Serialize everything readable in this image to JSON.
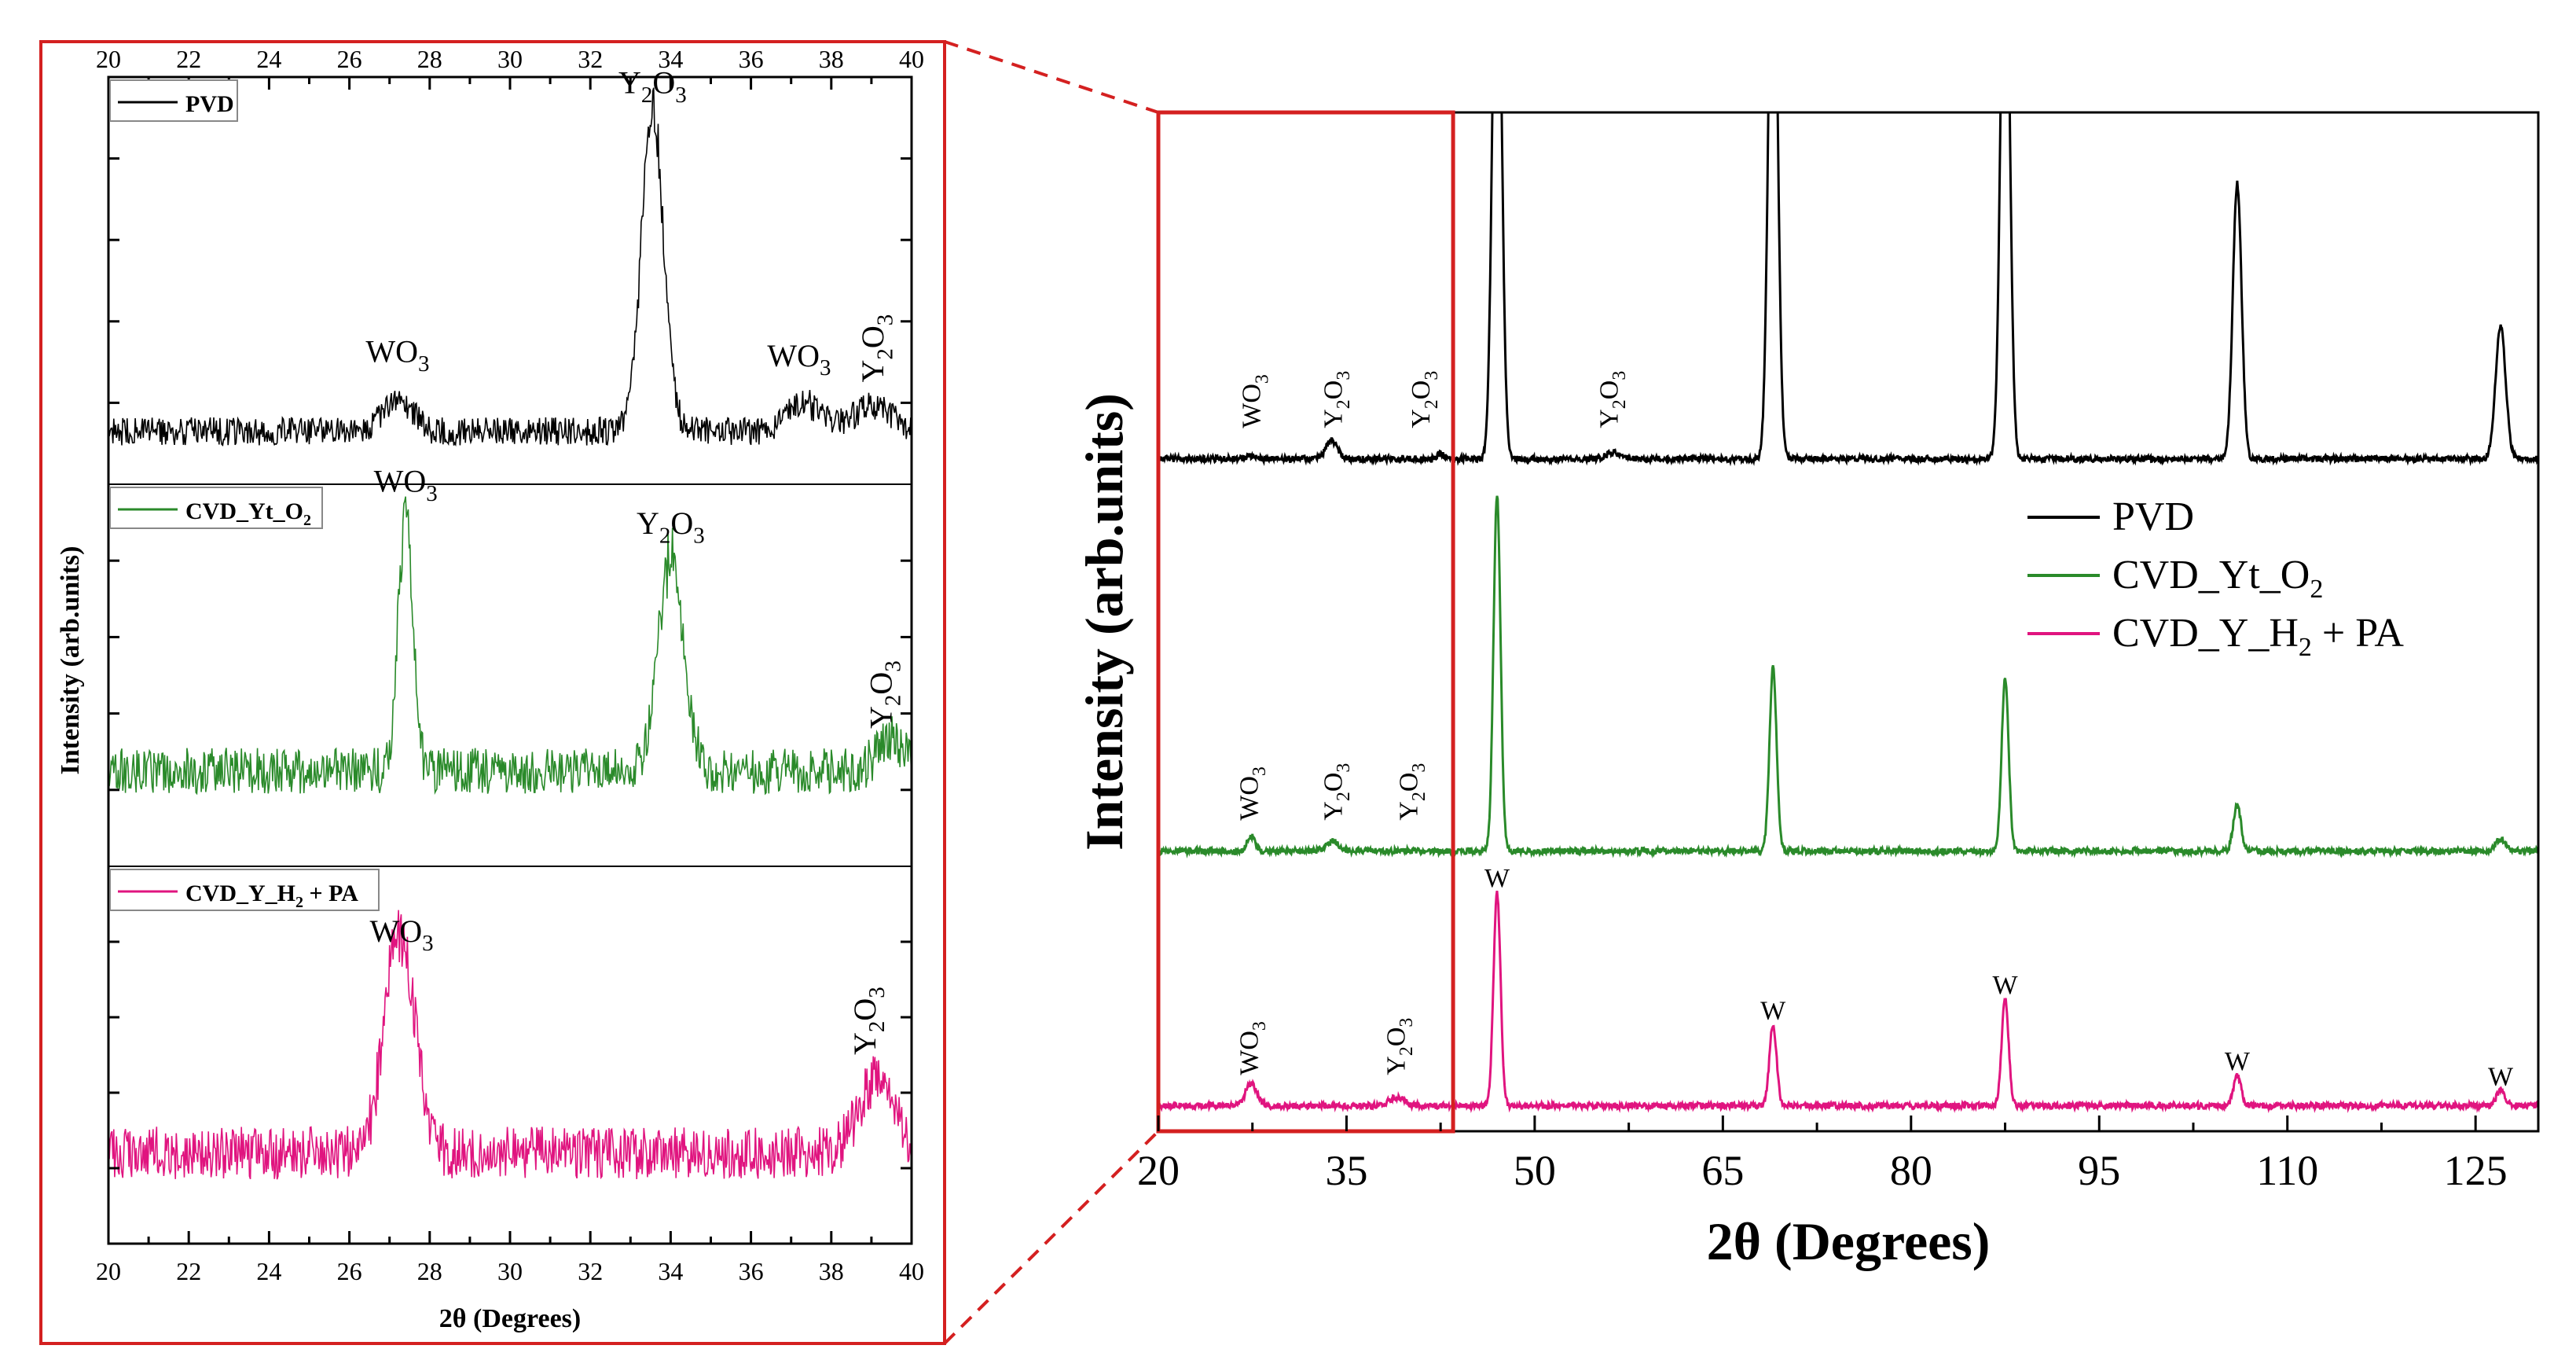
{
  "colors": {
    "pvd": "#000000",
    "cvd_yt": "#2a8a2a",
    "cvd_yh": "#e0147f",
    "frame": "#d42020"
  },
  "chart_data": [
    {
      "type": "line",
      "name": "inset",
      "xlabel": "2θ (Degrees)",
      "ylabel": "Intensity (arb.units)",
      "xlim": [
        20,
        40
      ],
      "xticks": [
        "20",
        "22",
        "24",
        "26",
        "28",
        "30",
        "32",
        "34",
        "36",
        "38",
        "40"
      ],
      "panels": [
        {
          "legend": "PVD",
          "color": "#000000",
          "baseline": 0.13,
          "noise": 0.035,
          "peaks": [
            [
              27.2,
              0.08,
              0.35
            ],
            [
              33.55,
              0.78,
              0.28
            ],
            [
              37.3,
              0.07,
              0.4
            ],
            [
              39.0,
              0.06,
              0.5
            ]
          ],
          "annotations": [
            {
              "label": "WO",
              "sub": "3",
              "x": 27.2,
              "y": 0.3
            },
            {
              "label": "Y",
              "sub": "2",
              "label2": "O",
              "sub2": "3",
              "x": 33.55,
              "y": 0.96
            },
            {
              "label": "WO",
              "sub": "3",
              "x": 37.2,
              "y": 0.29
            },
            {
              "label": "Y",
              "sub": "2",
              "label2": "O",
              "sub2": "3",
              "x": 39.3,
              "y": 0.25,
              "rotate": true
            }
          ]
        },
        {
          "legend": "CVD_Yt_O",
          "legend_sub": "2",
          "color": "#2a8a2a",
          "baseline": 0.25,
          "noise": 0.06,
          "peaks": [
            [
              27.4,
              0.7,
              0.18
            ],
            [
              34.0,
              0.55,
              0.32
            ],
            [
              39.5,
              0.08,
              0.35
            ]
          ],
          "annotations": [
            {
              "label": "WO",
              "sub": "3",
              "x": 27.4,
              "y": 0.98
            },
            {
              "label": "Y",
              "sub": "2",
              "label2": "O",
              "sub2": "3",
              "x": 34.0,
              "y": 0.87
            },
            {
              "label": "Y",
              "sub": "2",
              "label2": "O",
              "sub2": "3",
              "x": 39.5,
              "y": 0.36,
              "rotate": true
            }
          ]
        },
        {
          "legend": "CVD_Y_H",
          "legend_sub": "2",
          "legend_suffix": " + PA",
          "color": "#e0147f",
          "baseline": 0.24,
          "noise": 0.07,
          "peaks": [
            [
              27.25,
              0.58,
              0.38
            ],
            [
              39.1,
              0.18,
              0.45
            ]
          ],
          "annotations": [
            {
              "label": "WO",
              "sub": "3",
              "x": 27.3,
              "y": 0.8
            },
            {
              "label": "Y",
              "sub": "2",
              "label2": "O",
              "sub2": "3",
              "x": 39.1,
              "y": 0.5,
              "rotate": true
            }
          ]
        }
      ]
    },
    {
      "type": "line",
      "name": "main",
      "xlabel": "2θ (Degrees)",
      "ylabel": "Intensity (arb.units)",
      "xlim": [
        20,
        130
      ],
      "xticks": [
        "20",
        "35",
        "50",
        "65",
        "80",
        "95",
        "110",
        "125"
      ],
      "zoom_range": [
        20,
        43.5
      ],
      "legend": [
        {
          "label": "PVD",
          "color": "#000000"
        },
        {
          "label": "CVD_Yt_O",
          "sub": "2",
          "color": "#2a8a2a"
        },
        {
          "label": "CVD_Y_H",
          "sub": "2",
          "suffix": " + PA",
          "color": "#e0147f"
        }
      ],
      "series": [
        {
          "name": "PVD",
          "color": "#000000",
          "offset": 0.66,
          "noise": 0.003,
          "peaks": [
            [
              27.3,
              0.003,
              0.3
            ],
            [
              33.8,
              0.018,
              0.45
            ],
            [
              42.5,
              0.005,
              0.3
            ],
            [
              47.0,
              0.6,
              0.35
            ],
            [
              56.3,
              0.006,
              0.6
            ],
            [
              69.0,
              0.6,
              0.35
            ],
            [
              87.5,
              0.6,
              0.35
            ],
            [
              106.0,
              0.27,
              0.35
            ],
            [
              127.0,
              0.13,
              0.4
            ]
          ],
          "annotations": [
            {
              "label": "WO",
              "sub": "3",
              "x": 27.5,
              "y": 0.69,
              "rotate": true
            },
            {
              "label": "Y",
              "sub": "2",
              "label2": "O",
              "sub2": "3",
              "x": 34.0,
              "y": 0.69,
              "rotate": true
            },
            {
              "label": "Y",
              "sub": "2",
              "label2": "O",
              "sub2": "3",
              "x": 41.0,
              "y": 0.69,
              "rotate": true
            },
            {
              "label": "Y",
              "sub": "2",
              "label2": "O",
              "sub2": "3",
              "x": 56.0,
              "y": 0.69,
              "rotate": true
            }
          ]
        },
        {
          "name": "CVD_Yt_O2",
          "color": "#2a8a2a",
          "offset": 0.275,
          "noise": 0.003,
          "peaks": [
            [
              27.4,
              0.015,
              0.3
            ],
            [
              33.9,
              0.01,
              0.5
            ],
            [
              47.0,
              0.35,
              0.28
            ],
            [
              69.0,
              0.18,
              0.28
            ],
            [
              87.5,
              0.17,
              0.28
            ],
            [
              106.0,
              0.045,
              0.3
            ],
            [
              127.0,
              0.012,
              0.4
            ]
          ],
          "annotations": [
            {
              "label": "WO",
              "sub": "3",
              "x": 27.3,
              "y": 0.305,
              "rotate": true
            },
            {
              "label": "Y",
              "sub": "2",
              "label2": "O",
              "sub2": "3",
              "x": 34.0,
              "y": 0.305,
              "rotate": true
            },
            {
              "label": "Y",
              "sub": "2",
              "label2": "O",
              "sub2": "3",
              "x": 40.0,
              "y": 0.305,
              "rotate": true
            }
          ]
        },
        {
          "name": "CVD_Y_H2 + PA",
          "color": "#e0147f",
          "offset": 0.025,
          "noise": 0.003,
          "peaks": [
            [
              27.4,
              0.022,
              0.45
            ],
            [
              39.0,
              0.008,
              0.6
            ],
            [
              47.0,
              0.21,
              0.28
            ],
            [
              69.0,
              0.08,
              0.28
            ],
            [
              87.5,
              0.105,
              0.28
            ],
            [
              106.0,
              0.03,
              0.3
            ],
            [
              127.0,
              0.015,
              0.35
            ]
          ],
          "annotations": [
            {
              "label": "WO",
              "sub": "3",
              "x": 27.3,
              "y": 0.055,
              "rotate": true
            },
            {
              "label": "Y",
              "sub": "2",
              "label2": "O",
              "sub2": "3",
              "x": 39.0,
              "y": 0.055,
              "rotate": true
            },
            {
              "label": "W",
              "x": 47.0,
              "y": 0.24
            },
            {
              "label": "W",
              "x": 69.0,
              "y": 0.11
            },
            {
              "label": "W",
              "x": 87.5,
              "y": 0.135
            },
            {
              "label": "W",
              "x": 106.0,
              "y": 0.06
            },
            {
              "label": "W",
              "x": 127.0,
              "y": 0.045
            }
          ]
        }
      ]
    }
  ]
}
